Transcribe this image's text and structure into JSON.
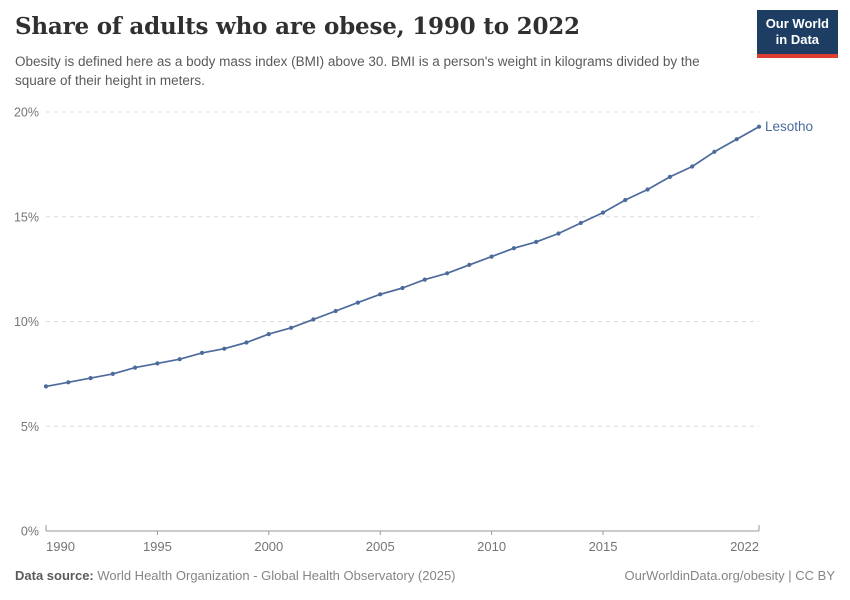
{
  "header": {
    "title": "Share of adults who are obese, 1990 to 2022",
    "subtitle": "Obesity is defined here as a body mass index (BMI) above 30. BMI is a person's weight in kilograms divided by the square of their height in meters.",
    "logo": {
      "line1": "Our World",
      "line2": "in Data"
    }
  },
  "chart_data": {
    "type": "line",
    "title": "Share of adults who are obese, 1990 to 2022",
    "x": [
      1990,
      1991,
      1992,
      1993,
      1994,
      1995,
      1996,
      1997,
      1998,
      1999,
      2000,
      2001,
      2002,
      2003,
      2004,
      2005,
      2006,
      2007,
      2008,
      2009,
      2010,
      2011,
      2012,
      2013,
      2014,
      2015,
      2016,
      2017,
      2018,
      2019,
      2020,
      2021,
      2022
    ],
    "series": [
      {
        "name": "Lesotho",
        "color": "#4c6a9c",
        "values": [
          6.9,
          7.1,
          7.3,
          7.5,
          7.8,
          8.0,
          8.2,
          8.5,
          8.7,
          9.0,
          9.4,
          9.7,
          10.1,
          10.5,
          10.9,
          11.3,
          11.6,
          12.0,
          12.3,
          12.7,
          13.1,
          13.5,
          13.8,
          14.2,
          14.7,
          15.2,
          15.8,
          16.3,
          16.9,
          17.4,
          18.1,
          18.7,
          19.3
        ]
      }
    ],
    "xlabel": "",
    "ylabel": "",
    "ylim": [
      0,
      20
    ],
    "yticks": [
      0,
      5,
      10,
      15,
      20
    ],
    "ytick_labels": [
      "0%",
      "5%",
      "10%",
      "15%",
      "20%"
    ],
    "xticks": [
      1990,
      1995,
      2000,
      2005,
      2010,
      2015,
      2022
    ],
    "grid": "horizontal-dashed",
    "legend": "line-end-label",
    "markers": true
  },
  "footer": {
    "datasource_label": "Data source:",
    "datasource_text": " World Health Organization - Global Health Observatory (2025)",
    "link_text": "OurWorldinData.org/obesity | CC BY"
  },
  "colors": {
    "line": "#4c6a9c",
    "entity_label": "#4c6a9c",
    "grid": "#dcdcdc",
    "axis": "#999999",
    "tick_text": "#757575",
    "logo_bg": "#1d3d63",
    "logo_bar": "#dc3e31"
  }
}
